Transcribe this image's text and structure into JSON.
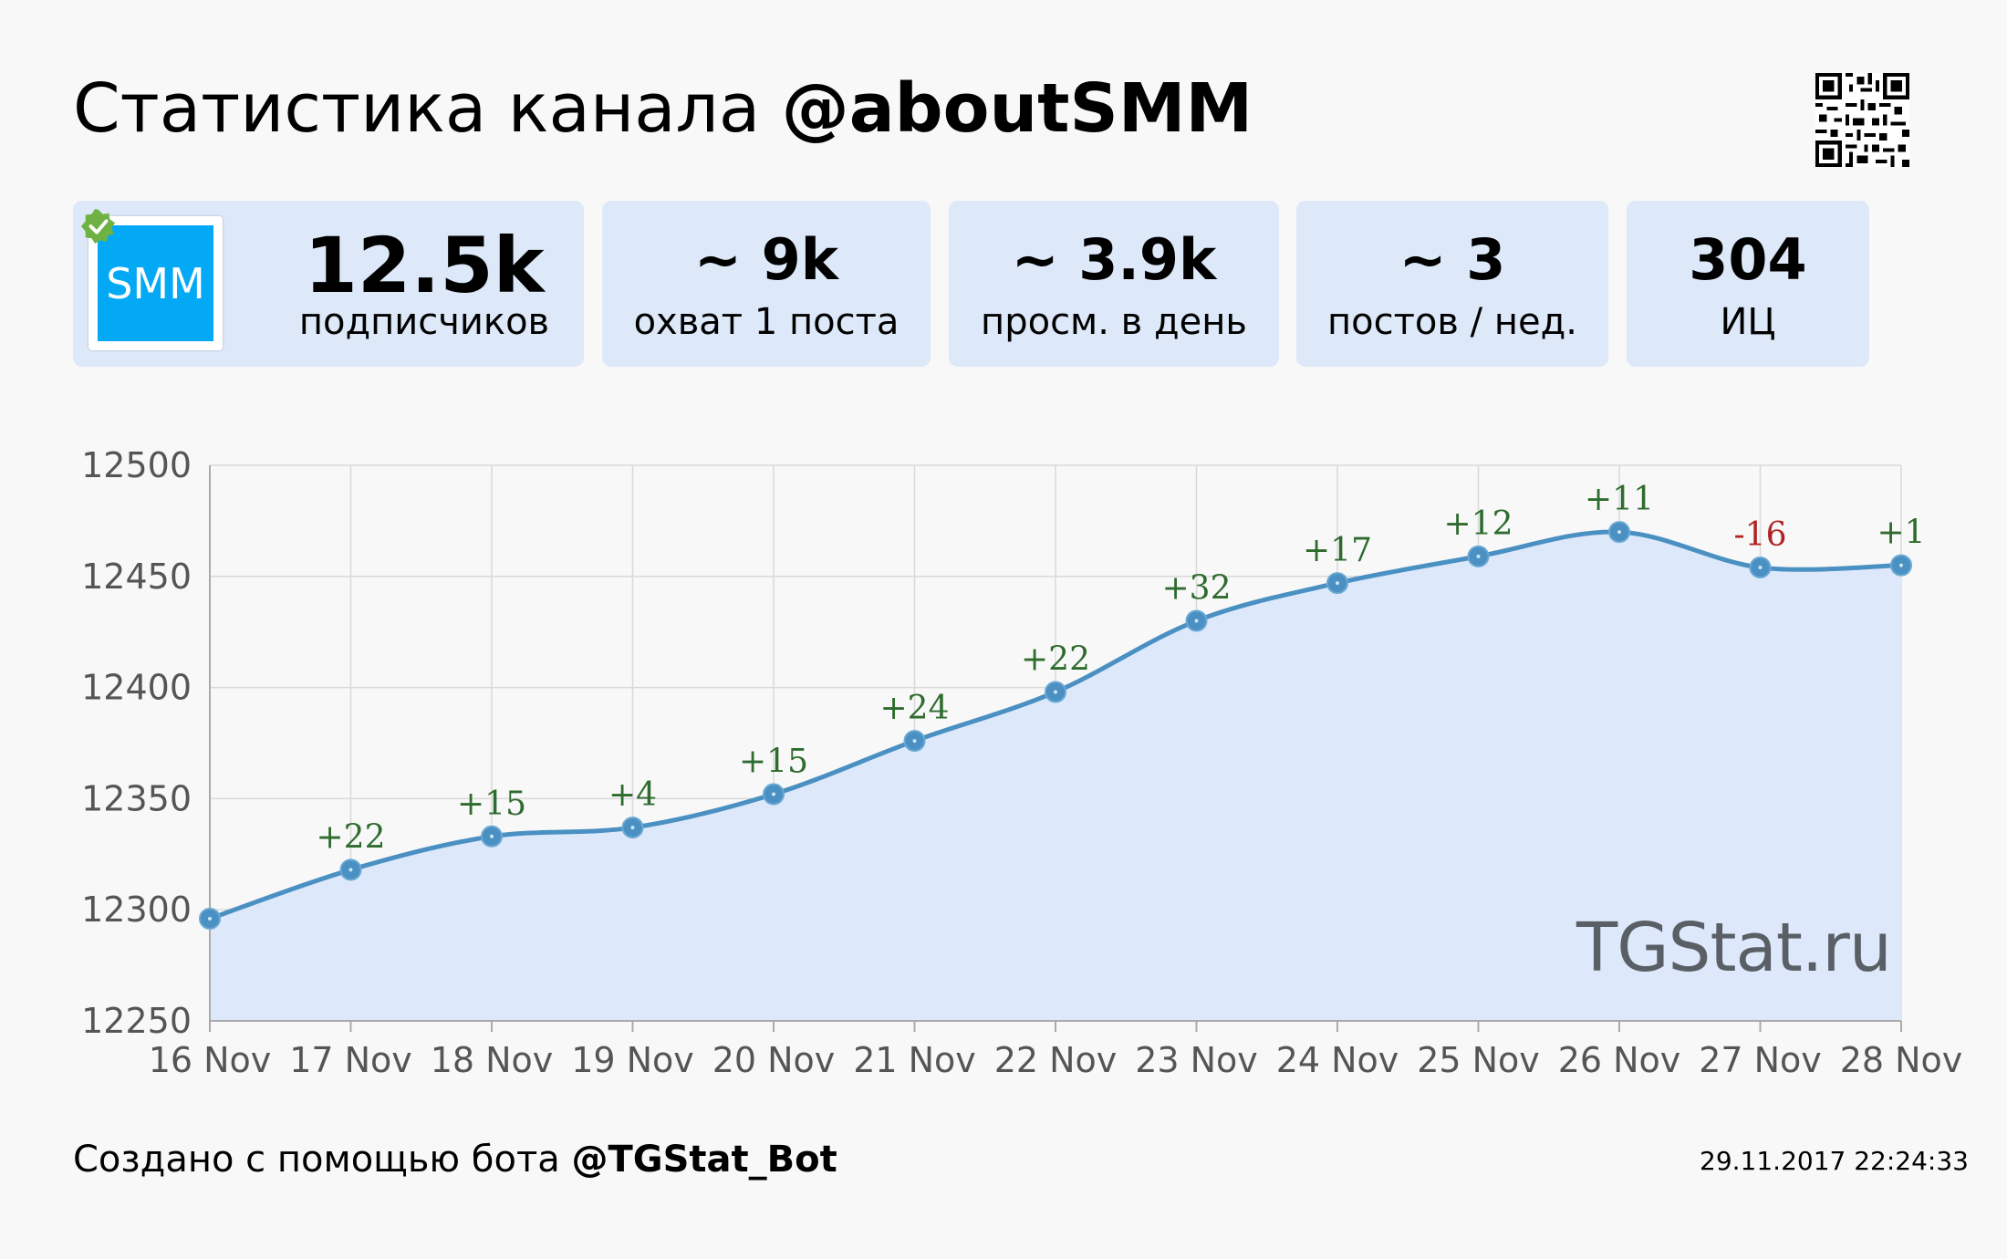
{
  "header": {
    "title_prefix": "Статистика канала",
    "channel": "@aboutSMM"
  },
  "logo": {
    "text": "SMM",
    "color": "#03a9f4"
  },
  "stats": [
    {
      "value": "12.5k",
      "label": "подписчиков"
    },
    {
      "value": "~ 9k",
      "label": "охват 1 поста"
    },
    {
      "value": "~ 3.9k",
      "label": "просм. в день"
    },
    {
      "value": "~ 3",
      "label": "постов / нед."
    },
    {
      "value": "304",
      "label": "ИЦ"
    }
  ],
  "chart_data": {
    "type": "area",
    "title": "",
    "xlabel": "",
    "ylabel": "",
    "categories": [
      "16 Nov",
      "17 Nov",
      "18 Nov",
      "19 Nov",
      "20 Nov",
      "21 Nov",
      "22 Nov",
      "23 Nov",
      "24 Nov",
      "25 Nov",
      "26 Nov",
      "27 Nov",
      "28 Nov"
    ],
    "values": [
      12296,
      12318,
      12333,
      12337,
      12352,
      12376,
      12398,
      12430,
      12447,
      12459,
      12470,
      12454,
      12455
    ],
    "deltas": [
      "",
      "+22",
      "+15",
      "+4",
      "+15",
      "+24",
      "+22",
      "+32",
      "+17",
      "+12",
      "+11",
      "-16",
      "+1"
    ],
    "ylim": [
      12250,
      12500
    ],
    "yticks": [
      12500,
      12450,
      12400,
      12350,
      12300,
      12250
    ],
    "grid": true,
    "line_color": "#4a90c2",
    "fill_color": "#dde9fb",
    "positive_color": "#2e6b2e",
    "negative_color": "#b22222"
  },
  "watermark": "TGStat.ru",
  "footer": {
    "prefix": "Создано с помощью бота",
    "bot": "@TGStat_Bot",
    "timestamp": "29.11.2017 22:24:33"
  }
}
